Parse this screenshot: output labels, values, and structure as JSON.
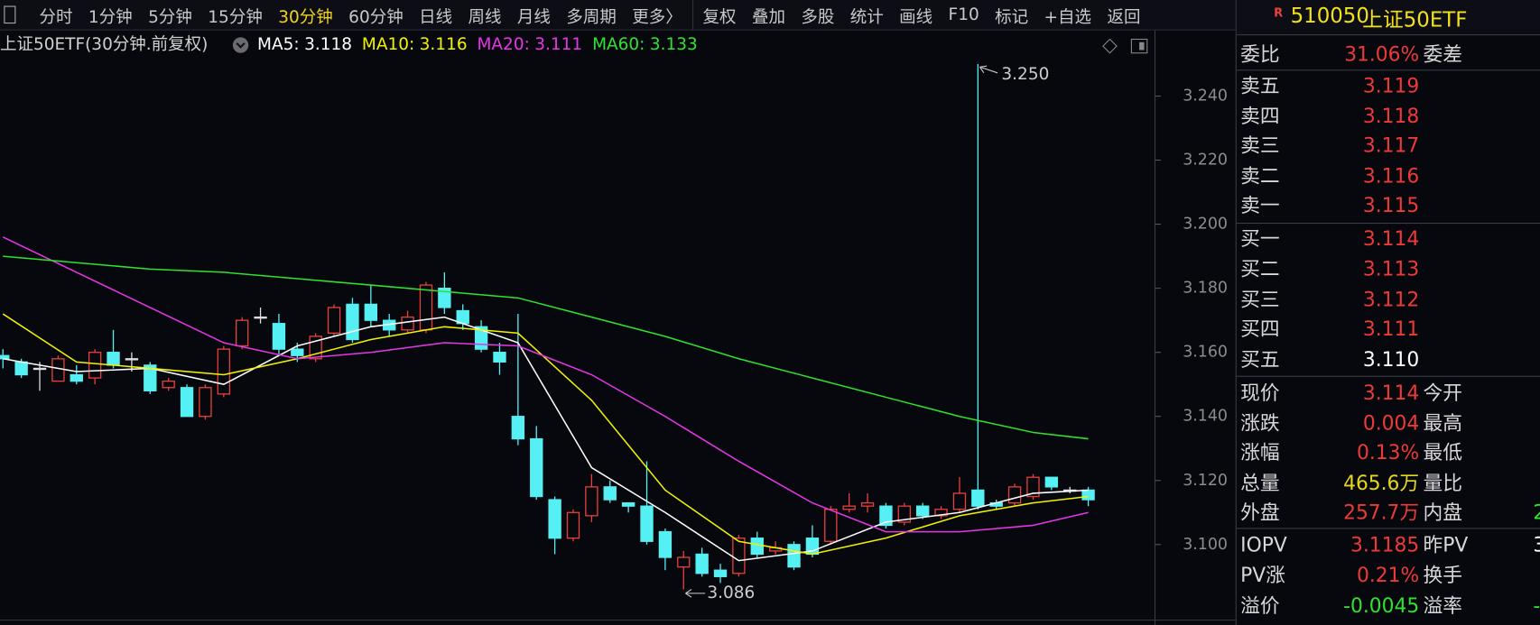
{
  "toolbar": {
    "periods": [
      "分时",
      "1分钟",
      "5分钟",
      "15分钟",
      "30分钟",
      "60分钟",
      "日线",
      "周线",
      "月线",
      "多周期",
      "更多〉"
    ],
    "active": "30分钟",
    "tools": [
      "复权",
      "叠加",
      "多股",
      "统计",
      "画线",
      "F10",
      "标记",
      "+自选",
      "返回"
    ]
  },
  "chart": {
    "type": "candlestick",
    "title": "上证50ETF(30分钟.前复权)",
    "up_color": "#e8403c",
    "down_color": "#54f0f4",
    "flat_color": "#dddddd",
    "ylim": [
      3.0764,
      3.251
    ],
    "yticks": [
      {
        "value": 3.1,
        "label": "3.100"
      },
      {
        "value": 3.12,
        "label": "3.120"
      },
      {
        "value": 3.14,
        "label": "3.140"
      },
      {
        "value": 3.16,
        "label": "3.160"
      },
      {
        "value": 3.18,
        "label": "3.180"
      },
      {
        "value": 3.2,
        "label": "3.200"
      },
      {
        "value": 3.22,
        "label": "3.220"
      },
      {
        "value": 3.24,
        "label": "3.240"
      }
    ],
    "candles": {
      "open": [
        3.159,
        3.157,
        3.155,
        3.151,
        3.153,
        3.152,
        3.16,
        3.158,
        3.156,
        3.149,
        3.149,
        3.14,
        3.147,
        3.162,
        3.171,
        3.169,
        3.161,
        3.158,
        3.166,
        3.175,
        3.175,
        3.17,
        3.167,
        3.167,
        3.18,
        3.173,
        3.168,
        3.16,
        3.14,
        3.133,
        3.114,
        3.102,
        3.109,
        3.118,
        3.113,
        3.112,
        3.104,
        3.093,
        3.097,
        3.092,
        3.091,
        3.102,
        3.098,
        3.1,
        3.102,
        3.101,
        3.111,
        3.112,
        3.112,
        3.107,
        3.112,
        3.109,
        3.111,
        3.117,
        3.113,
        3.113,
        3.115,
        3.121,
        3.117,
        3.117
      ],
      "high": [
        3.161,
        3.158,
        3.157,
        3.159,
        3.156,
        3.161,
        3.167,
        3.16,
        3.157,
        3.152,
        3.15,
        3.15,
        3.162,
        3.171,
        3.174,
        3.172,
        3.163,
        3.166,
        3.175,
        3.177,
        3.181,
        3.172,
        3.173,
        3.182,
        3.185,
        3.175,
        3.17,
        3.163,
        3.172,
        3.137,
        3.115,
        3.111,
        3.122,
        3.12,
        3.113,
        3.126,
        3.105,
        3.098,
        3.099,
        3.094,
        3.103,
        3.104,
        3.101,
        3.101,
        3.106,
        3.112,
        3.116,
        3.116,
        3.113,
        3.113,
        3.113,
        3.112,
        3.121,
        3.25,
        3.114,
        3.119,
        3.122,
        3.121,
        3.118,
        3.118
      ],
      "low": [
        3.155,
        3.152,
        3.148,
        3.151,
        3.15,
        3.15,
        3.155,
        3.154,
        3.147,
        3.148,
        3.14,
        3.139,
        3.146,
        3.161,
        3.169,
        3.159,
        3.157,
        3.157,
        3.165,
        3.163,
        3.168,
        3.165,
        3.166,
        3.166,
        3.172,
        3.167,
        3.16,
        3.153,
        3.131,
        3.114,
        3.097,
        3.101,
        3.107,
        3.113,
        3.11,
        3.1,
        3.092,
        3.086,
        3.09,
        3.088,
        3.09,
        3.096,
        3.097,
        3.092,
        3.096,
        3.1,
        3.11,
        3.11,
        3.105,
        3.106,
        3.108,
        3.108,
        3.11,
        3.111,
        3.111,
        3.112,
        3.114,
        3.117,
        3.116,
        3.112
      ],
      "close": [
        3.158,
        3.153,
        3.155,
        3.158,
        3.151,
        3.16,
        3.156,
        3.158,
        3.148,
        3.151,
        3.14,
        3.149,
        3.161,
        3.17,
        3.171,
        3.161,
        3.159,
        3.165,
        3.174,
        3.164,
        3.17,
        3.167,
        3.171,
        3.181,
        3.174,
        3.169,
        3.161,
        3.157,
        3.133,
        3.115,
        3.102,
        3.11,
        3.118,
        3.114,
        3.112,
        3.101,
        3.096,
        3.096,
        3.091,
        3.09,
        3.102,
        3.097,
        3.099,
        3.093,
        3.097,
        3.111,
        3.112,
        3.113,
        3.106,
        3.112,
        3.109,
        3.111,
        3.116,
        3.112,
        3.112,
        3.118,
        3.121,
        3.118,
        3.117,
        3.114
      ]
    },
    "ma_x": [
      0,
      4,
      8,
      12,
      16,
      20,
      24,
      28,
      32,
      36,
      40,
      44,
      48,
      52,
      56,
      59
    ],
    "ma": [
      {
        "name": "MA5:",
        "value": 3.118,
        "color": "#ffffff",
        "values": [
          3.158,
          3.154,
          3.155,
          3.15,
          3.162,
          3.168,
          3.171,
          3.163,
          3.124,
          3.11,
          3.095,
          3.098,
          3.107,
          3.11,
          3.116,
          3.117
        ]
      },
      {
        "name": "MA10:",
        "value": 3.116,
        "color": "#f2f200",
        "values": [
          3.172,
          3.157,
          3.155,
          3.153,
          3.158,
          3.164,
          3.168,
          3.166,
          3.145,
          3.117,
          3.101,
          3.097,
          3.102,
          3.109,
          3.113,
          3.115
        ]
      },
      {
        "name": "MA20:",
        "value": 3.111,
        "color": "#e636e6",
        "values": [
          3.196,
          3.185,
          3.174,
          3.163,
          3.158,
          3.16,
          3.163,
          3.162,
          3.153,
          3.14,
          3.126,
          3.113,
          3.104,
          3.104,
          3.106,
          3.11
        ]
      },
      {
        "name": "MA60:",
        "value": 3.133,
        "color": "#2ee22e",
        "values": [
          3.19,
          3.188,
          3.186,
          3.185,
          3.183,
          3.181,
          3.179,
          3.177,
          3.171,
          3.165,
          3.158,
          3.152,
          3.146,
          3.14,
          3.135,
          3.133
        ]
      }
    ],
    "high_mark": {
      "value": 3.25,
      "label": "3.250"
    },
    "low_mark": {
      "value": 3.086,
      "label": "3.086"
    }
  },
  "quote": {
    "badge": "R",
    "code": "510050",
    "name": "上证50ETF",
    "ratio": [
      {
        "label": "委比",
        "value": "31.06%",
        "label2": "委差"
      }
    ],
    "asks": [
      {
        "label": "卖五",
        "value": "3.119"
      },
      {
        "label": "卖四",
        "value": "3.118"
      },
      {
        "label": "卖三",
        "value": "3.117"
      },
      {
        "label": "卖二",
        "value": "3.116"
      },
      {
        "label": "卖一",
        "value": "3.115"
      }
    ],
    "bids": [
      {
        "label": "买一",
        "value": "3.114"
      },
      {
        "label": "买二",
        "value": "3.113"
      },
      {
        "label": "买三",
        "value": "3.112"
      },
      {
        "label": "买四",
        "value": "3.111"
      },
      {
        "label": "买五",
        "value": "3.110",
        "color": "#ffffff"
      }
    ],
    "stats": [
      {
        "label": "现价",
        "value": "3.114",
        "label2": "今开"
      },
      {
        "label": "涨跌",
        "value": "0.004",
        "label2": "最高"
      },
      {
        "label": "涨幅",
        "value": "0.13%",
        "label2": "最低"
      },
      {
        "label": "总量",
        "value": "465.6万",
        "color": "#e6d61c",
        "label2": "量比"
      },
      {
        "label": "外盘",
        "value": "257.7万",
        "label2": "内盘",
        "value2": "2",
        "color2": "#2ee22e"
      }
    ],
    "etf": [
      {
        "label": "IOPV",
        "value": "3.1185",
        "label2": "昨PV",
        "value2": "3",
        "color2": "#ffffff"
      },
      {
        "label": "PV涨",
        "value": "0.21%",
        "label2": "换手"
      },
      {
        "label": "溢价",
        "value": "-0.0045",
        "color": "#2ee22e",
        "label2": "溢率",
        "value2": "-",
        "color2": "#2ee22e"
      }
    ]
  }
}
